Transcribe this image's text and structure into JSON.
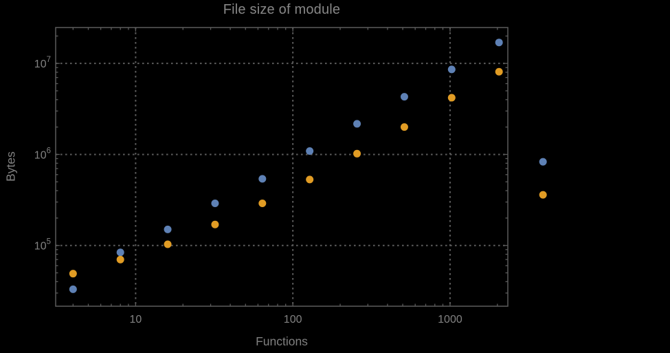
{
  "title": "File size of module",
  "chart_data": {
    "type": "scatter",
    "title": "File size of module",
    "x_axis": {
      "label": "Functions",
      "scale": "log",
      "lim": [
        3.1,
        2330
      ],
      "major_ticks": [
        10,
        100,
        1000
      ],
      "tick_labels": [
        "10",
        "100",
        "1000"
      ]
    },
    "y_axis": {
      "label": "Bytes",
      "scale": "log",
      "lim": [
        21500,
        24800000
      ],
      "major_ticks": [
        100000,
        1000000,
        10000000
      ],
      "tick_labels": [
        {
          "mantissa": "10",
          "exponent": "5"
        },
        {
          "mantissa": "10",
          "exponent": "6"
        },
        {
          "mantissa": "10",
          "exponent": "7"
        }
      ]
    },
    "grid": {
      "style": "dotted",
      "at": "major-ticks",
      "color": "#5c5c5c"
    },
    "legend": null,
    "marker": {
      "shape": "circle",
      "radius": 5.5
    },
    "series": [
      {
        "name": "series-1-blue",
        "color": "#5E81B5",
        "points": [
          [
            4,
            33000
          ],
          [
            8,
            84000
          ],
          [
            16,
            150000
          ],
          [
            32,
            290000
          ],
          [
            64,
            540000
          ],
          [
            128,
            1090000
          ],
          [
            256,
            2170000
          ],
          [
            512,
            4300000
          ],
          [
            1024,
            8600000
          ],
          [
            2048,
            17000000
          ],
          [
            3900,
            830000
          ]
        ]
      },
      {
        "name": "series-2-orange",
        "color": "#E19C24",
        "points": [
          [
            4,
            49000
          ],
          [
            8,
            70000
          ],
          [
            16,
            103000
          ],
          [
            32,
            170000
          ],
          [
            64,
            290000
          ],
          [
            128,
            530000
          ],
          [
            256,
            1020000
          ],
          [
            512,
            2000000
          ],
          [
            1024,
            4200000
          ],
          [
            2048,
            8100000
          ],
          [
            3900,
            360000
          ]
        ]
      }
    ]
  },
  "colors": {
    "background": "#000000",
    "frame": "#5c5c5c",
    "grid": "#5c5c5c",
    "tick_text": "#828282",
    "title_text": "#878787",
    "axis_label_text": "#808080"
  }
}
